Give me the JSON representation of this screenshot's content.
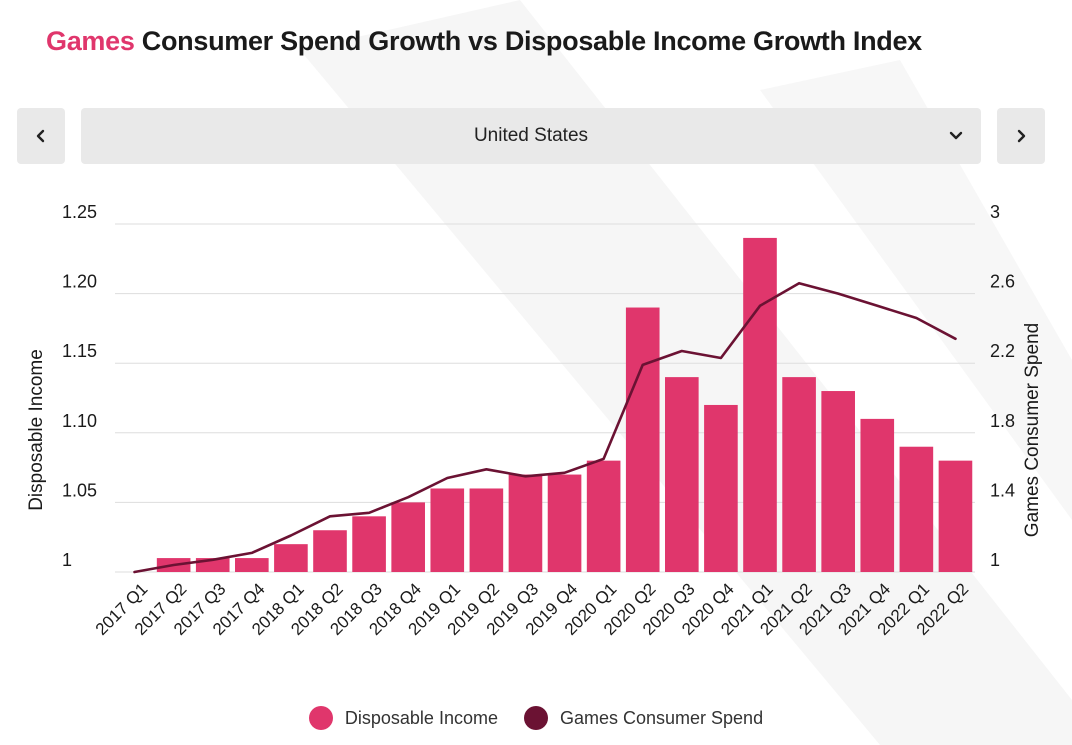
{
  "page": {
    "title_accent": "Games",
    "title_rest": " Consumer Spend Growth vs Disposable Income Growth Index"
  },
  "selector": {
    "value": "United States",
    "prev_icon": "chevron-left-icon",
    "next_icon": "chevron-right-icon",
    "dropdown_icon": "chevron-down-icon"
  },
  "colors": {
    "accent": "#e0366c",
    "bar": "#e0366c",
    "line": "#6b1233",
    "grid": "#dddddd",
    "text": "#1a1a1a"
  },
  "chart_data": {
    "type": "bar",
    "title": "Games Consumer Spend Growth vs Disposable Income Growth Index",
    "categories": [
      "2017 Q1",
      "2017 Q2",
      "2017 Q3",
      "2017 Q4",
      "2018 Q1",
      "2018 Q2",
      "2018 Q3",
      "2018 Q4",
      "2019 Q1",
      "2019 Q2",
      "2019 Q3",
      "2019 Q4",
      "2020 Q1",
      "2020 Q2",
      "2020 Q3",
      "2020 Q4",
      "2021 Q1",
      "2021 Q2",
      "2021 Q3",
      "2021 Q4",
      "2022 Q1",
      "2022 Q2"
    ],
    "series": [
      {
        "name": "Disposable Income",
        "type": "bar",
        "axis": "left",
        "values": [
          1.0,
          1.01,
          1.01,
          1.01,
          1.02,
          1.03,
          1.04,
          1.05,
          1.06,
          1.06,
          1.07,
          1.07,
          1.08,
          1.19,
          1.14,
          1.12,
          1.24,
          1.14,
          1.13,
          1.11,
          1.09,
          1.08
        ]
      },
      {
        "name": "Games Consumer Spend",
        "type": "line",
        "axis": "right",
        "values": [
          1.0,
          1.04,
          1.07,
          1.11,
          1.21,
          1.32,
          1.34,
          1.43,
          1.54,
          1.59,
          1.55,
          1.57,
          1.65,
          2.19,
          2.27,
          2.23,
          2.53,
          2.66,
          2.6,
          2.53,
          2.46,
          2.34
        ]
      }
    ],
    "ylabel": "Disposable Income",
    "y2label": "Games Consumer Spend",
    "ylim": [
      1.0,
      1.25
    ],
    "y2lim": [
      1.0,
      3.0
    ],
    "yticks": [
      "1",
      "1.05",
      "1.10",
      "1.15",
      "1.20",
      "1.25"
    ],
    "y2ticks": [
      "1",
      "1.4",
      "1.8",
      "2.2",
      "2.6",
      "3"
    ],
    "grid": true,
    "legend": "bottom-center"
  }
}
